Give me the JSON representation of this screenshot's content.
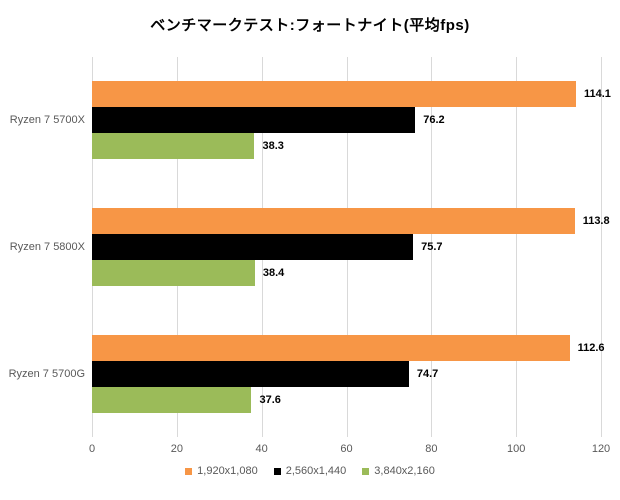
{
  "title": "ベンチマークテスト:フォートナイト(平均fps)",
  "colors": {
    "grid": "#d9d9d9",
    "axis_text": "#595959",
    "value_text": "#000000"
  },
  "chart_data": {
    "type": "bar",
    "orientation": "horizontal",
    "title": "ベンチマークテスト:フォートナイト(平均fps)",
    "categories": [
      "Ryzen 7 5700X",
      "Ryzen 7 5800X",
      "Ryzen 7 5700G"
    ],
    "series": [
      {
        "name": "1,920x1,080",
        "color": "#F79646",
        "values": [
          114.1,
          113.8,
          112.6
        ]
      },
      {
        "name": "2,560x1,440",
        "color": "#000000",
        "values": [
          76.2,
          75.7,
          74.7
        ]
      },
      {
        "name": "3,840x2,160",
        "color": "#9BBB59",
        "values": [
          38.3,
          38.4,
          37.6
        ]
      }
    ],
    "xlim": [
      0,
      120
    ],
    "xticks": [
      0,
      20,
      40,
      60,
      80,
      100,
      120
    ],
    "grid": true,
    "legend_position": "bottom",
    "value_labels": true
  }
}
